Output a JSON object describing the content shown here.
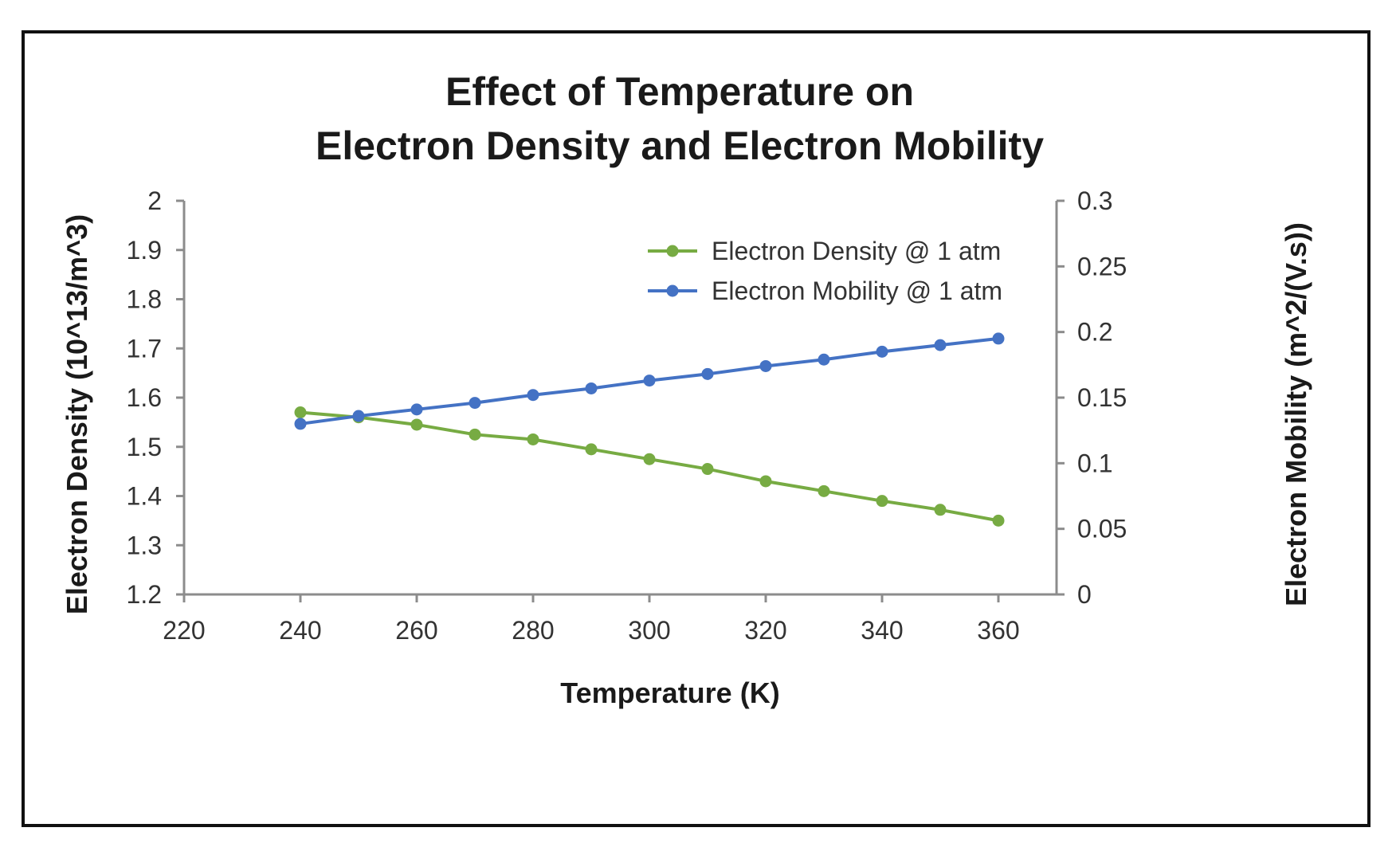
{
  "chart_data": {
    "type": "line",
    "title": [
      "Effect of Temperature on",
      "Electron Density and Electron Mobility"
    ],
    "xlabel": "Temperature (K)",
    "ylabel_left": "Electron Density (10^13/m^3)",
    "ylabel_right": "Electron Mobility (m^2/(V.s))",
    "xlim": [
      220,
      370
    ],
    "xticks": [
      220,
      240,
      260,
      280,
      300,
      320,
      340,
      360
    ],
    "ylim_left": [
      1.2,
      2.0
    ],
    "yticks_left": [
      "1.2",
      "1.3",
      "1.4",
      "1.5",
      "1.6",
      "1.7",
      "1.8",
      "1.9",
      "2"
    ],
    "ylim_right": [
      0,
      0.3
    ],
    "yticks_right": [
      "0",
      "0.05",
      "0.1",
      "0.15",
      "0.2",
      "0.25",
      "0.3"
    ],
    "grid": false,
    "legend_position": "top-right",
    "x": [
      240,
      250,
      260,
      270,
      280,
      290,
      300,
      310,
      320,
      330,
      340,
      350,
      360
    ],
    "series": [
      {
        "name": "Electron Density @ 1 atm",
        "axis": "left",
        "color": "#77ab43",
        "values": [
          1.57,
          1.56,
          1.545,
          1.525,
          1.515,
          1.495,
          1.475,
          1.455,
          1.43,
          1.41,
          1.39,
          1.372,
          1.35
        ]
      },
      {
        "name": "Electron Mobility @ 1 atm",
        "axis": "right",
        "color": "#4472c4",
        "values": [
          0.13,
          0.136,
          0.141,
          0.146,
          0.152,
          0.157,
          0.163,
          0.168,
          0.174,
          0.179,
          0.185,
          0.19,
          0.195
        ]
      }
    ]
  }
}
